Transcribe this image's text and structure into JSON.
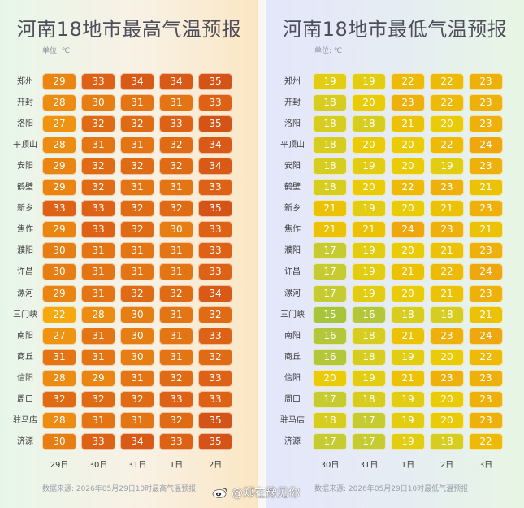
{
  "chart_data": [
    {
      "type": "heatmap",
      "title": "河南18地市最高气温预报",
      "unit_label": "单位: ℃",
      "categories": [
        "29日",
        "30日",
        "31日",
        "1日",
        "2日"
      ],
      "rows": [
        "郑州",
        "开封",
        "洛阳",
        "平顶山",
        "安阳",
        "鹤壁",
        "新乡",
        "焦作",
        "濮阳",
        "许昌",
        "漯河",
        "三门峡",
        "南阳",
        "商丘",
        "信阳",
        "周口",
        "驻马店",
        "济源"
      ],
      "values": [
        [
          29,
          33,
          34,
          34,
          35
        ],
        [
          28,
          30,
          31,
          31,
          33
        ],
        [
          27,
          32,
          32,
          33,
          35
        ],
        [
          28,
          31,
          31,
          32,
          34
        ],
        [
          29,
          32,
          32,
          32,
          34
        ],
        [
          29,
          32,
          31,
          31,
          33
        ],
        [
          33,
          33,
          32,
          32,
          35
        ],
        [
          29,
          33,
          32,
          30,
          33
        ],
        [
          30,
          31,
          31,
          31,
          33
        ],
        [
          30,
          31,
          31,
          31,
          33
        ],
        [
          29,
          31,
          32,
          32,
          34
        ],
        [
          22,
          28,
          30,
          31,
          32
        ],
        [
          27,
          31,
          30,
          31,
          33
        ],
        [
          31,
          31,
          30,
          31,
          32
        ],
        [
          28,
          29,
          31,
          32,
          33
        ],
        [
          32,
          32,
          32,
          33,
          33
        ],
        [
          28,
          31,
          31,
          32,
          35
        ],
        [
          30,
          33,
          34,
          33,
          35
        ]
      ],
      "source": "数据来源: 2026年05月29日10时最高气温预报"
    },
    {
      "type": "heatmap",
      "title": "河南18地市最低气温预报",
      "unit_label": "单位: ℃",
      "categories": [
        "30日",
        "31日",
        "1日",
        "2日",
        "3日"
      ],
      "rows": [
        "郑州",
        "开封",
        "洛阳",
        "平顶山",
        "安阳",
        "鹤壁",
        "新乡",
        "焦作",
        "濮阳",
        "许昌",
        "漯河",
        "三门峡",
        "南阳",
        "商丘",
        "信阳",
        "周口",
        "驻马店",
        "济源"
      ],
      "values": [
        [
          19,
          19,
          22,
          22,
          23
        ],
        [
          18,
          20,
          23,
          22,
          23
        ],
        [
          18,
          18,
          21,
          20,
          23
        ],
        [
          18,
          20,
          20,
          22,
          24
        ],
        [
          18,
          19,
          20,
          19,
          23
        ],
        [
          18,
          20,
          22,
          23,
          21
        ],
        [
          21,
          19,
          20,
          21,
          23
        ],
        [
          21,
          21,
          24,
          23,
          21
        ],
        [
          17,
          19,
          20,
          21,
          23
        ],
        [
          17,
          19,
          21,
          22,
          24
        ],
        [
          17,
          19,
          20,
          21,
          23
        ],
        [
          15,
          16,
          18,
          18,
          21
        ],
        [
          16,
          18,
          21,
          23,
          24
        ],
        [
          16,
          18,
          19,
          20,
          22
        ],
        [
          20,
          19,
          21,
          23,
          23
        ],
        [
          17,
          18,
          19,
          20,
          23
        ],
        [
          18,
          17,
          19,
          20,
          23
        ],
        [
          17,
          17,
          19,
          18,
          22
        ]
      ],
      "source": "数据来源: 2026年05月29日10时最低气温预报"
    }
  ],
  "colors": {
    "high": {
      "22": "#f5a90f",
      "27": "#ef9412",
      "28": "#ed8c12",
      "29": "#ea8512",
      "30": "#e77e13",
      "31": "#e47514",
      "32": "#e06b15",
      "33": "#dd6216",
      "34": "#d85a16",
      "35": "#d45317"
    },
    "low": {
      "15": "#a8c43a",
      "16": "#b4c63a",
      "17": "#c5cb30",
      "18": "#d6cd20",
      "19": "#e2cd12",
      "20": "#eacb08",
      "21": "#ecc206",
      "22": "#edba08",
      "23": "#eeb10b",
      "24": "#eea70e"
    }
  },
  "watermark": "@郑在豫见你"
}
